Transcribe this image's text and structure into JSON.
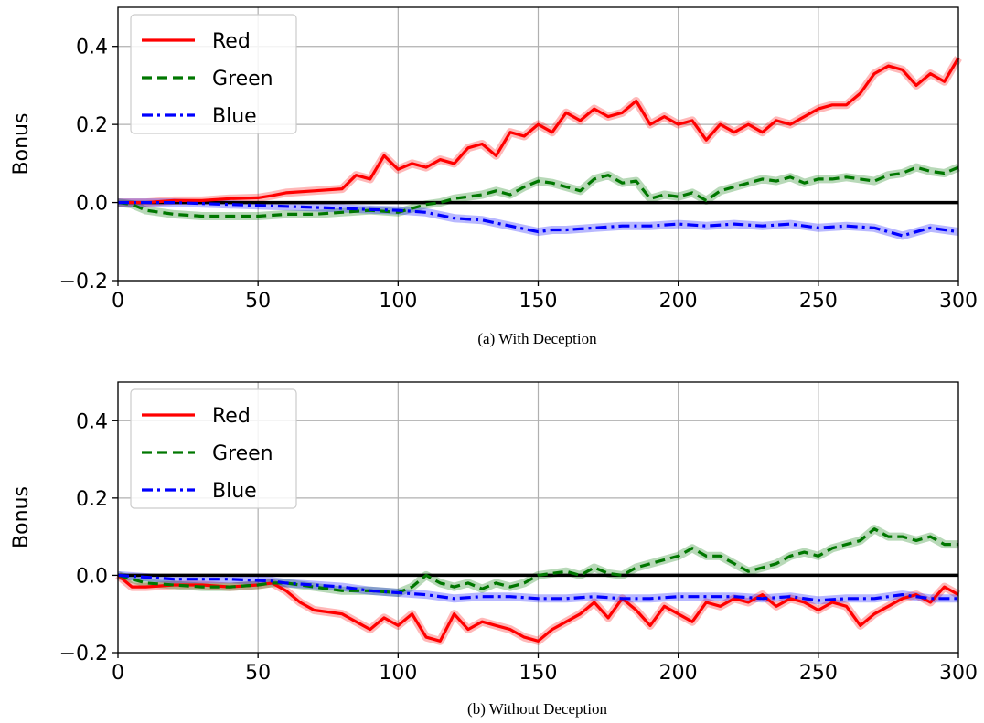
{
  "chart_data": [
    {
      "type": "line",
      "caption": "(a) With Deception",
      "ylabel": "Bonus",
      "xlim": [
        0,
        300
      ],
      "ylim": [
        -0.2,
        0.5
      ],
      "xticks": [
        "0",
        "50",
        "100",
        "150",
        "200",
        "250",
        "300"
      ],
      "yticks": [
        "−0.2",
        "0.0",
        "0.2",
        "0.4"
      ],
      "grid": true,
      "legend_position": "top-left",
      "reference_line_y": 0,
      "series": [
        {
          "name": "Red",
          "color": "#ff0000",
          "style": "solid",
          "x": [
            0,
            10,
            20,
            30,
            40,
            50,
            55,
            60,
            70,
            80,
            85,
            90,
            95,
            100,
            105,
            110,
            115,
            120,
            125,
            130,
            135,
            140,
            145,
            150,
            155,
            160,
            165,
            170,
            175,
            180,
            185,
            190,
            195,
            200,
            205,
            210,
            215,
            220,
            225,
            230,
            235,
            240,
            245,
            250,
            255,
            260,
            265,
            270,
            275,
            280,
            285,
            290,
            295,
            300
          ],
          "y": [
            0.0,
            0.0,
            0.005,
            0.005,
            0.01,
            0.012,
            0.018,
            0.025,
            0.03,
            0.035,
            0.07,
            0.06,
            0.12,
            0.085,
            0.1,
            0.09,
            0.11,
            0.1,
            0.14,
            0.15,
            0.12,
            0.18,
            0.17,
            0.2,
            0.18,
            0.23,
            0.21,
            0.24,
            0.22,
            0.23,
            0.26,
            0.2,
            0.22,
            0.2,
            0.21,
            0.16,
            0.2,
            0.18,
            0.2,
            0.18,
            0.21,
            0.2,
            0.22,
            0.24,
            0.25,
            0.25,
            0.28,
            0.33,
            0.35,
            0.34,
            0.3,
            0.33,
            0.31,
            0.37
          ]
        },
        {
          "name": "Green",
          "color": "#007700",
          "style": "dashed",
          "x": [
            0,
            5,
            10,
            20,
            30,
            40,
            50,
            60,
            70,
            80,
            90,
            100,
            105,
            110,
            115,
            120,
            125,
            130,
            135,
            140,
            145,
            150,
            155,
            160,
            165,
            170,
            175,
            180,
            185,
            190,
            195,
            200,
            205,
            210,
            215,
            220,
            225,
            230,
            235,
            240,
            245,
            250,
            255,
            260,
            265,
            270,
            275,
            280,
            285,
            290,
            295,
            300
          ],
          "y": [
            0.0,
            -0.005,
            -0.02,
            -0.03,
            -0.035,
            -0.035,
            -0.035,
            -0.03,
            -0.03,
            -0.025,
            -0.02,
            -0.025,
            -0.015,
            -0.005,
            0.0,
            0.01,
            0.015,
            0.02,
            0.03,
            0.02,
            0.04,
            0.055,
            0.05,
            0.04,
            0.03,
            0.06,
            0.07,
            0.05,
            0.055,
            0.01,
            0.02,
            0.015,
            0.025,
            0.005,
            0.03,
            0.04,
            0.05,
            0.06,
            0.055,
            0.065,
            0.05,
            0.06,
            0.06,
            0.065,
            0.06,
            0.055,
            0.07,
            0.075,
            0.09,
            0.08,
            0.075,
            0.09
          ]
        },
        {
          "name": "Blue",
          "color": "#0000ff",
          "style": "dashdot",
          "x": [
            0,
            20,
            40,
            60,
            80,
            90,
            100,
            110,
            120,
            130,
            140,
            150,
            155,
            160,
            170,
            180,
            190,
            200,
            210,
            220,
            230,
            240,
            250,
            260,
            270,
            280,
            290,
            300
          ],
          "y": [
            0.0,
            0.0,
            -0.005,
            -0.01,
            -0.015,
            -0.018,
            -0.02,
            -0.025,
            -0.04,
            -0.045,
            -0.06,
            -0.075,
            -0.07,
            -0.07,
            -0.065,
            -0.06,
            -0.06,
            -0.055,
            -0.06,
            -0.055,
            -0.06,
            -0.055,
            -0.065,
            -0.06,
            -0.065,
            -0.085,
            -0.065,
            -0.075
          ]
        }
      ]
    },
    {
      "type": "line",
      "caption": "(b) Without Deception",
      "ylabel": "Bonus",
      "xlim": [
        0,
        300
      ],
      "ylim": [
        -0.2,
        0.5
      ],
      "xticks": [
        "0",
        "50",
        "100",
        "150",
        "200",
        "250",
        "300"
      ],
      "yticks": [
        "−0.2",
        "0.0",
        "0.2",
        "0.4"
      ],
      "grid": true,
      "legend_position": "top-left",
      "reference_line_y": 0,
      "series": [
        {
          "name": "Red",
          "color": "#ff0000",
          "style": "solid",
          "x": [
            0,
            5,
            10,
            20,
            30,
            40,
            50,
            55,
            60,
            65,
            70,
            80,
            85,
            90,
            95,
            100,
            105,
            110,
            115,
            120,
            125,
            130,
            135,
            140,
            145,
            150,
            155,
            160,
            165,
            170,
            175,
            180,
            185,
            190,
            195,
            200,
            205,
            210,
            215,
            220,
            225,
            230,
            235,
            240,
            245,
            250,
            255,
            260,
            265,
            270,
            275,
            280,
            285,
            290,
            295,
            300
          ],
          "y": [
            0.0,
            -0.03,
            -0.03,
            -0.025,
            -0.025,
            -0.03,
            -0.025,
            -0.02,
            -0.04,
            -0.07,
            -0.09,
            -0.1,
            -0.12,
            -0.14,
            -0.11,
            -0.13,
            -0.1,
            -0.16,
            -0.17,
            -0.1,
            -0.14,
            -0.12,
            -0.13,
            -0.14,
            -0.16,
            -0.17,
            -0.14,
            -0.12,
            -0.1,
            -0.07,
            -0.11,
            -0.06,
            -0.09,
            -0.13,
            -0.08,
            -0.1,
            -0.12,
            -0.07,
            -0.08,
            -0.06,
            -0.07,
            -0.05,
            -0.08,
            -0.06,
            -0.07,
            -0.09,
            -0.07,
            -0.08,
            -0.13,
            -0.1,
            -0.08,
            -0.06,
            -0.05,
            -0.07,
            -0.03,
            -0.05
          ]
        },
        {
          "name": "Green",
          "color": "#007700",
          "style": "dashed",
          "x": [
            0,
            10,
            20,
            30,
            40,
            50,
            55,
            60,
            70,
            80,
            90,
            100,
            105,
            110,
            115,
            120,
            125,
            130,
            135,
            140,
            145,
            150,
            155,
            160,
            165,
            170,
            175,
            180,
            185,
            190,
            195,
            200,
            205,
            210,
            215,
            220,
            225,
            230,
            235,
            240,
            245,
            250,
            255,
            260,
            265,
            270,
            275,
            280,
            285,
            290,
            295,
            300
          ],
          "y": [
            0.0,
            -0.02,
            -0.025,
            -0.03,
            -0.03,
            -0.025,
            -0.02,
            -0.02,
            -0.03,
            -0.04,
            -0.04,
            -0.045,
            -0.03,
            0.0,
            -0.02,
            -0.03,
            -0.02,
            -0.035,
            -0.02,
            -0.03,
            -0.02,
            0.0,
            0.005,
            0.01,
            0.0,
            0.02,
            0.005,
            0.0,
            0.02,
            0.03,
            0.04,
            0.05,
            0.07,
            0.05,
            0.05,
            0.03,
            0.01,
            0.02,
            0.03,
            0.05,
            0.06,
            0.05,
            0.07,
            0.08,
            0.09,
            0.12,
            0.1,
            0.1,
            0.09,
            0.1,
            0.08,
            0.08
          ]
        },
        {
          "name": "Blue",
          "color": "#0000ff",
          "style": "dashdot",
          "x": [
            0,
            20,
            40,
            55,
            60,
            70,
            80,
            90,
            100,
            110,
            120,
            130,
            140,
            150,
            160,
            170,
            180,
            190,
            200,
            210,
            220,
            230,
            240,
            250,
            260,
            270,
            280,
            290,
            300
          ],
          "y": [
            0.0,
            -0.01,
            -0.01,
            -0.015,
            -0.02,
            -0.025,
            -0.03,
            -0.04,
            -0.045,
            -0.05,
            -0.06,
            -0.055,
            -0.055,
            -0.06,
            -0.06,
            -0.055,
            -0.06,
            -0.06,
            -0.055,
            -0.055,
            -0.055,
            -0.06,
            -0.055,
            -0.065,
            -0.06,
            -0.06,
            -0.05,
            -0.06,
            -0.06
          ]
        }
      ]
    }
  ]
}
